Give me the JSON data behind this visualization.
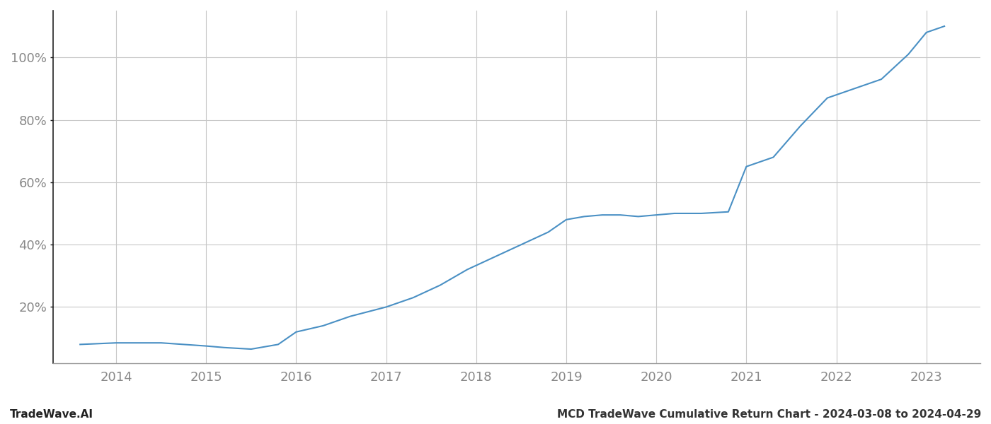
{
  "title": "MCD TradeWave Cumulative Return Chart - 2024-03-08 to 2024-04-29",
  "watermark": "TradeWave.AI",
  "line_color": "#4a90c4",
  "background_color": "#ffffff",
  "grid_color": "#c8c8c8",
  "years": [
    2013.6,
    2014.0,
    2014.5,
    2015.0,
    2015.2,
    2015.5,
    2015.8,
    2016.0,
    2016.3,
    2016.6,
    2017.0,
    2017.3,
    2017.6,
    2017.9,
    2018.2,
    2018.5,
    2018.8,
    2019.0,
    2019.2,
    2019.4,
    2019.6,
    2019.8,
    2020.0,
    2020.2,
    2020.5,
    2020.8,
    2021.0,
    2021.3,
    2021.6,
    2021.9,
    2022.2,
    2022.5,
    2022.8,
    2023.0,
    2023.2
  ],
  "values": [
    8,
    8.5,
    8.5,
    7.5,
    7,
    6.5,
    8,
    12,
    14,
    17,
    20,
    23,
    27,
    32,
    36,
    40,
    44,
    48,
    49,
    49.5,
    49.5,
    49,
    49.5,
    50,
    50,
    50.5,
    65,
    68,
    78,
    87,
    90,
    93,
    101,
    108,
    110
  ],
  "xticks": [
    2014,
    2015,
    2016,
    2017,
    2018,
    2019,
    2020,
    2021,
    2022,
    2023
  ],
  "yticks": [
    20,
    40,
    60,
    80,
    100
  ],
  "xlim": [
    2013.3,
    2023.6
  ],
  "ylim": [
    2,
    115
  ],
  "tick_label_color": "#888888",
  "title_color": "#333333",
  "watermark_color": "#222222",
  "line_width": 1.5,
  "title_fontsize": 11,
  "watermark_fontsize": 11,
  "tick_fontsize": 13,
  "left_spine_color": "#222222",
  "bottom_spine_color": "#999999"
}
